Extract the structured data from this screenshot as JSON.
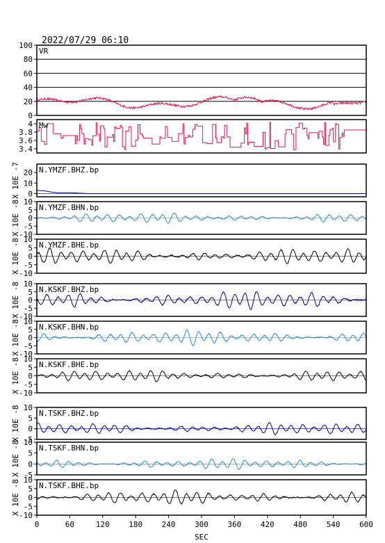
{
  "page": {
    "datetime": "2022/07/29 06:10",
    "xlabel": "SEC"
  },
  "chart_data": {
    "type": "line",
    "xlim": [
      0,
      600
    ],
    "xticks": [
      0,
      60,
      120,
      180,
      240,
      300,
      360,
      420,
      480,
      540,
      600
    ],
    "panels": [
      {
        "name": "VR",
        "ylim": [
          0,
          100
        ],
        "yticks": [
          0,
          20,
          40,
          60,
          80,
          100
        ],
        "grid": true,
        "color": "#e0144c",
        "mode": "vr",
        "ylabel": ""
      },
      {
        "name": "Mw",
        "ylim": [
          3.3,
          4.1
        ],
        "yticks": [
          3.4,
          3.6,
          3.8,
          4.0
        ],
        "grid": false,
        "color": "#e0144c",
        "mode": "mw",
        "ylabel": ""
      },
      {
        "name": "N.YMZF.BHZ.bp",
        "ylim": [
          -3,
          28
        ],
        "yticks": [
          0,
          10,
          20
        ],
        "color": "#00008b",
        "mode": "decay",
        "amp": 3,
        "ylabel": "X 10E -7"
      },
      {
        "name": "N.YMZF.BHN.bp",
        "ylim": [
          -10,
          10
        ],
        "yticks": [
          -10,
          -5,
          0,
          5,
          10
        ],
        "color": "#1f8fd6",
        "mode": "wave",
        "amp": 1.8,
        "ylabel": "X 10E -8"
      },
      {
        "name": "N.YMZF.BHE.bp",
        "ylim": [
          -10,
          10
        ],
        "yticks": [
          -10,
          -5,
          0,
          5,
          10
        ],
        "color": "#000000",
        "mode": "wave",
        "amp": 2.6,
        "ylabel": "X 10E -8"
      },
      {
        "name": "N.KSKF.BHZ.bp",
        "ylim": [
          -10,
          10
        ],
        "yticks": [
          -10,
          -5,
          0,
          5,
          10
        ],
        "color": "#00008b",
        "mode": "wave",
        "amp": 3.2,
        "ylabel": "X 10E -8"
      },
      {
        "name": "N.KSKF.BHN.bp",
        "ylim": [
          -10,
          10
        ],
        "yticks": [
          -10,
          -5,
          0,
          5,
          10
        ],
        "color": "#1f8fd6",
        "mode": "wave",
        "amp": 2.6,
        "ylabel": "X 10E -8"
      },
      {
        "name": "N.KSKF.BHE.bp",
        "ylim": [
          -10,
          10
        ],
        "yticks": [
          -10,
          -5,
          0,
          5,
          10
        ],
        "color": "#000000",
        "mode": "wave",
        "amp": 2.0,
        "ylabel": "X 10E -8"
      },
      {
        "name": "N.TSKF.BHZ.bp",
        "ylim": [
          -5,
          10
        ],
        "yticks": [
          -5,
          0,
          5,
          10
        ],
        "color": "#00008b",
        "mode": "wave",
        "amp": 1.6,
        "ylabel": "X 10E -8"
      },
      {
        "name": "N.TSKF.BHN.bp",
        "ylim": [
          -5,
          10
        ],
        "yticks": [
          -5,
          0,
          5,
          10
        ],
        "color": "#1f8fd6",
        "mode": "wave",
        "amp": 1.4,
        "ylabel": "X 10E -8"
      },
      {
        "name": "N.TSKF.BHE.bp",
        "ylim": [
          -10,
          10
        ],
        "yticks": [
          -10,
          -5,
          0,
          5,
          10
        ],
        "color": "#000000",
        "mode": "wave",
        "amp": 2.3,
        "ylabel": "X 10E -8"
      }
    ]
  }
}
